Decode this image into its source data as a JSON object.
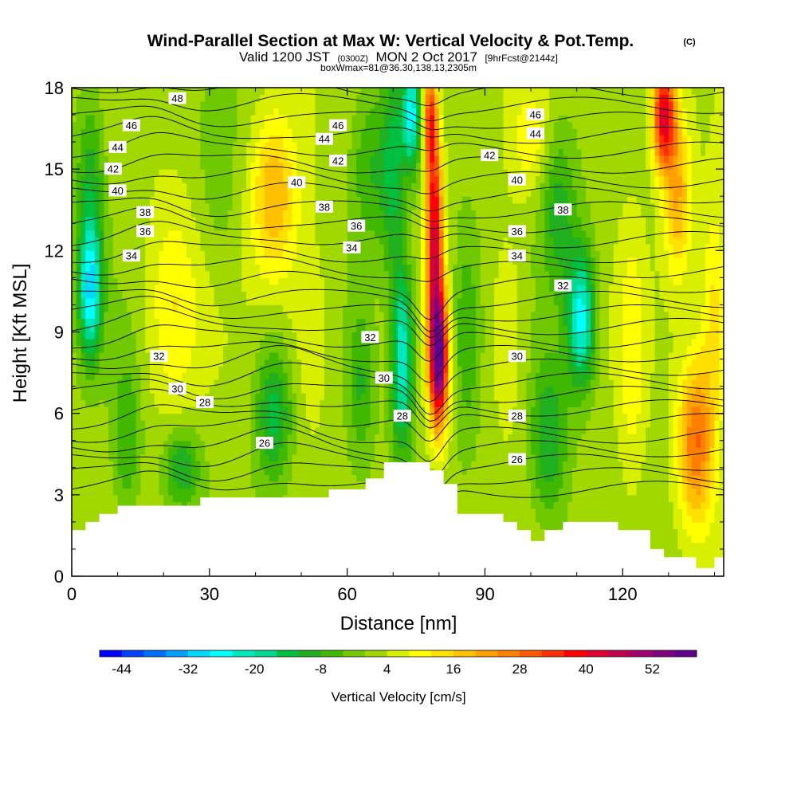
{
  "chart_data": {
    "type": "heatmap",
    "title": "Wind-Parallel Section at Max W: Vertical Velocity & Pot.Temp.",
    "title_mark": "(C)",
    "subtitle": {
      "valid_prefix": "Valid 1200 JST",
      "utc": "(0300Z)",
      "date": "MON 2 Oct 2017",
      "fcst": "[9hrFcst@2144z]"
    },
    "subtitle2": "boxWmax=81@36.30,138.13,2305m",
    "xlabel": "Distance [nm]",
    "ylabel": "Height [Kft MSL]",
    "xlim": [
      0,
      142
    ],
    "ylim": [
      0,
      18
    ],
    "xticks": [
      0,
      30,
      60,
      90,
      120
    ],
    "yticks": [
      0,
      3,
      6,
      9,
      12,
      15,
      18
    ],
    "grid": false,
    "colorbar": {
      "label": "Vertical Velocity [cm/s]",
      "placement": "bottom",
      "ticks": [
        -44,
        -32,
        -20,
        -8,
        4,
        16,
        28,
        40,
        52
      ],
      "colors": [
        "#0000ff",
        "#0040ff",
        "#0070ff",
        "#00a0ff",
        "#00d8ff",
        "#00ffff",
        "#00e8c0",
        "#00d890",
        "#00c040",
        "#20b020",
        "#40b800",
        "#70c800",
        "#a0d800",
        "#d8f000",
        "#ffff00",
        "#ffe000",
        "#ffc000",
        "#ffa000",
        "#ff8000",
        "#ff5800",
        "#ff3000",
        "#ff0000",
        "#e00030",
        "#c00050",
        "#a00070",
        "#800080",
        "#600090"
      ]
    },
    "terrain_kft": [
      [
        0,
        1.7
      ],
      [
        3,
        1.7
      ],
      [
        3,
        2.0
      ],
      [
        6,
        2.0
      ],
      [
        6,
        2.3
      ],
      [
        10,
        2.3
      ],
      [
        10,
        2.6
      ],
      [
        28,
        2.6
      ],
      [
        28,
        2.9
      ],
      [
        56,
        2.9
      ],
      [
        56,
        3.2
      ],
      [
        64,
        3.2
      ],
      [
        64,
        3.6
      ],
      [
        68,
        3.6
      ],
      [
        68,
        4.2
      ],
      [
        78,
        4.2
      ],
      [
        78,
        3.9
      ],
      [
        81,
        3.9
      ],
      [
        81,
        3.4
      ],
      [
        84,
        3.4
      ],
      [
        84,
        2.3
      ],
      [
        94,
        2.3
      ],
      [
        94,
        2.0
      ],
      [
        97,
        2.0
      ],
      [
        97,
        1.7
      ],
      [
        100,
        1.7
      ],
      [
        100,
        1.3
      ],
      [
        103,
        1.3
      ],
      [
        103,
        1.7
      ],
      [
        107,
        1.7
      ],
      [
        107,
        2.0
      ],
      [
        119,
        2.0
      ],
      [
        119,
        1.7
      ],
      [
        126,
        1.7
      ],
      [
        126,
        1.0
      ],
      [
        129,
        1.0
      ],
      [
        129,
        0.7
      ],
      [
        136,
        0.7
      ],
      [
        136,
        0.3
      ],
      [
        140,
        0.3
      ],
      [
        140,
        0.7
      ],
      [
        142,
        0.7
      ]
    ],
    "w_field_cms": [
      {
        "x": 4,
        "y": 10.5,
        "w": -28,
        "sx": 2.5,
        "sy": 2.5
      },
      {
        "x": 4,
        "y": 14.5,
        "w": -12,
        "sx": 3,
        "sy": 3.5
      },
      {
        "x": 12,
        "y": 5,
        "w": -10,
        "sx": 3,
        "sy": 3
      },
      {
        "x": 22,
        "y": 10,
        "w": 10,
        "sx": 6,
        "sy": 4
      },
      {
        "x": 24,
        "y": 4,
        "w": -14,
        "sx": 4,
        "sy": 1.5
      },
      {
        "x": 32,
        "y": 14,
        "w": -4,
        "sx": 5,
        "sy": 3
      },
      {
        "x": 44,
        "y": 6,
        "w": -16,
        "sx": 4,
        "sy": 2.5
      },
      {
        "x": 44,
        "y": 14,
        "w": 18,
        "sx": 5,
        "sy": 3
      },
      {
        "x": 52,
        "y": 9,
        "w": 6,
        "sx": 5,
        "sy": 4
      },
      {
        "x": 63,
        "y": 7,
        "w": -10,
        "sx": 3,
        "sy": 3
      },
      {
        "x": 65,
        "y": 15,
        "w": -10,
        "sx": 4,
        "sy": 3
      },
      {
        "x": 72,
        "y": 8,
        "w": -26,
        "sx": 2.5,
        "sy": 3.5
      },
      {
        "x": 70,
        "y": 15,
        "w": -14,
        "sx": 2.5,
        "sy": 4
      },
      {
        "x": 80,
        "y": 8,
        "w": 52,
        "sx": 2,
        "sy": 2.5
      },
      {
        "x": 79,
        "y": 12.5,
        "w": 40,
        "sx": 1.8,
        "sy": 4
      },
      {
        "x": 78,
        "y": 17,
        "w": 28,
        "sx": 1.5,
        "sy": 2
      },
      {
        "x": 74,
        "y": 17,
        "w": -26,
        "sx": 2,
        "sy": 2
      },
      {
        "x": 86,
        "y": 9,
        "w": -10,
        "sx": 3,
        "sy": 4
      },
      {
        "x": 95,
        "y": 9,
        "w": 6,
        "sx": 4,
        "sy": 4
      },
      {
        "x": 100,
        "y": 16,
        "w": 8,
        "sx": 4,
        "sy": 2
      },
      {
        "x": 111,
        "y": 9.5,
        "w": -28,
        "sx": 3,
        "sy": 2.5
      },
      {
        "x": 106,
        "y": 13.5,
        "w": -12,
        "sx": 4,
        "sy": 3
      },
      {
        "x": 104,
        "y": 5,
        "w": -14,
        "sx": 4,
        "sy": 3
      },
      {
        "x": 122,
        "y": 8,
        "w": 8,
        "sx": 3,
        "sy": 5
      },
      {
        "x": 129,
        "y": 17,
        "w": 40,
        "sx": 2.5,
        "sy": 2
      },
      {
        "x": 132,
        "y": 14,
        "w": 18,
        "sx": 3,
        "sy": 3
      },
      {
        "x": 136,
        "y": 5,
        "w": 26,
        "sx": 4,
        "sy": 3
      },
      {
        "x": 140,
        "y": 10,
        "w": 12,
        "sx": 3,
        "sy": 4
      }
    ],
    "theta_contour_labels": [
      {
        "text": "48",
        "x": 23,
        "y": 17.6
      },
      {
        "text": "46",
        "x": 13,
        "y": 16.6
      },
      {
        "text": "44",
        "x": 10,
        "y": 15.8
      },
      {
        "text": "42",
        "x": 9,
        "y": 15.0
      },
      {
        "text": "40",
        "x": 10,
        "y": 14.2
      },
      {
        "text": "38",
        "x": 16,
        "y": 13.4
      },
      {
        "text": "36",
        "x": 16,
        "y": 12.7
      },
      {
        "text": "34",
        "x": 13,
        "y": 11.8
      },
      {
        "text": "32",
        "x": 19,
        "y": 8.1
      },
      {
        "text": "30",
        "x": 23,
        "y": 6.9
      },
      {
        "text": "28",
        "x": 29,
        "y": 6.4
      },
      {
        "text": "26",
        "x": 42,
        "y": 4.9
      },
      {
        "text": "46",
        "x": 58,
        "y": 16.6
      },
      {
        "text": "44",
        "x": 55,
        "y": 16.1
      },
      {
        "text": "42",
        "x": 58,
        "y": 15.3
      },
      {
        "text": "40",
        "x": 49,
        "y": 14.5
      },
      {
        "text": "38",
        "x": 55,
        "y": 13.6
      },
      {
        "text": "36",
        "x": 62,
        "y": 12.9
      },
      {
        "text": "34",
        "x": 61,
        "y": 12.1
      },
      {
        "text": "32",
        "x": 65,
        "y": 8.8
      },
      {
        "text": "30",
        "x": 68,
        "y": 7.3
      },
      {
        "text": "28",
        "x": 72,
        "y": 5.9
      },
      {
        "text": "46",
        "x": 101,
        "y": 17.0
      },
      {
        "text": "44",
        "x": 101,
        "y": 16.3
      },
      {
        "text": "42",
        "x": 91,
        "y": 15.5
      },
      {
        "text": "40",
        "x": 97,
        "y": 14.6
      },
      {
        "text": "38",
        "x": 107,
        "y": 13.5
      },
      {
        "text": "36",
        "x": 97,
        "y": 12.7
      },
      {
        "text": "34",
        "x": 97,
        "y": 11.8
      },
      {
        "text": "32",
        "x": 107,
        "y": 10.7
      },
      {
        "text": "30",
        "x": 97,
        "y": 8.1
      },
      {
        "text": "28",
        "x": 97,
        "y": 5.9
      },
      {
        "text": "26",
        "x": 97,
        "y": 4.3
      }
    ]
  }
}
